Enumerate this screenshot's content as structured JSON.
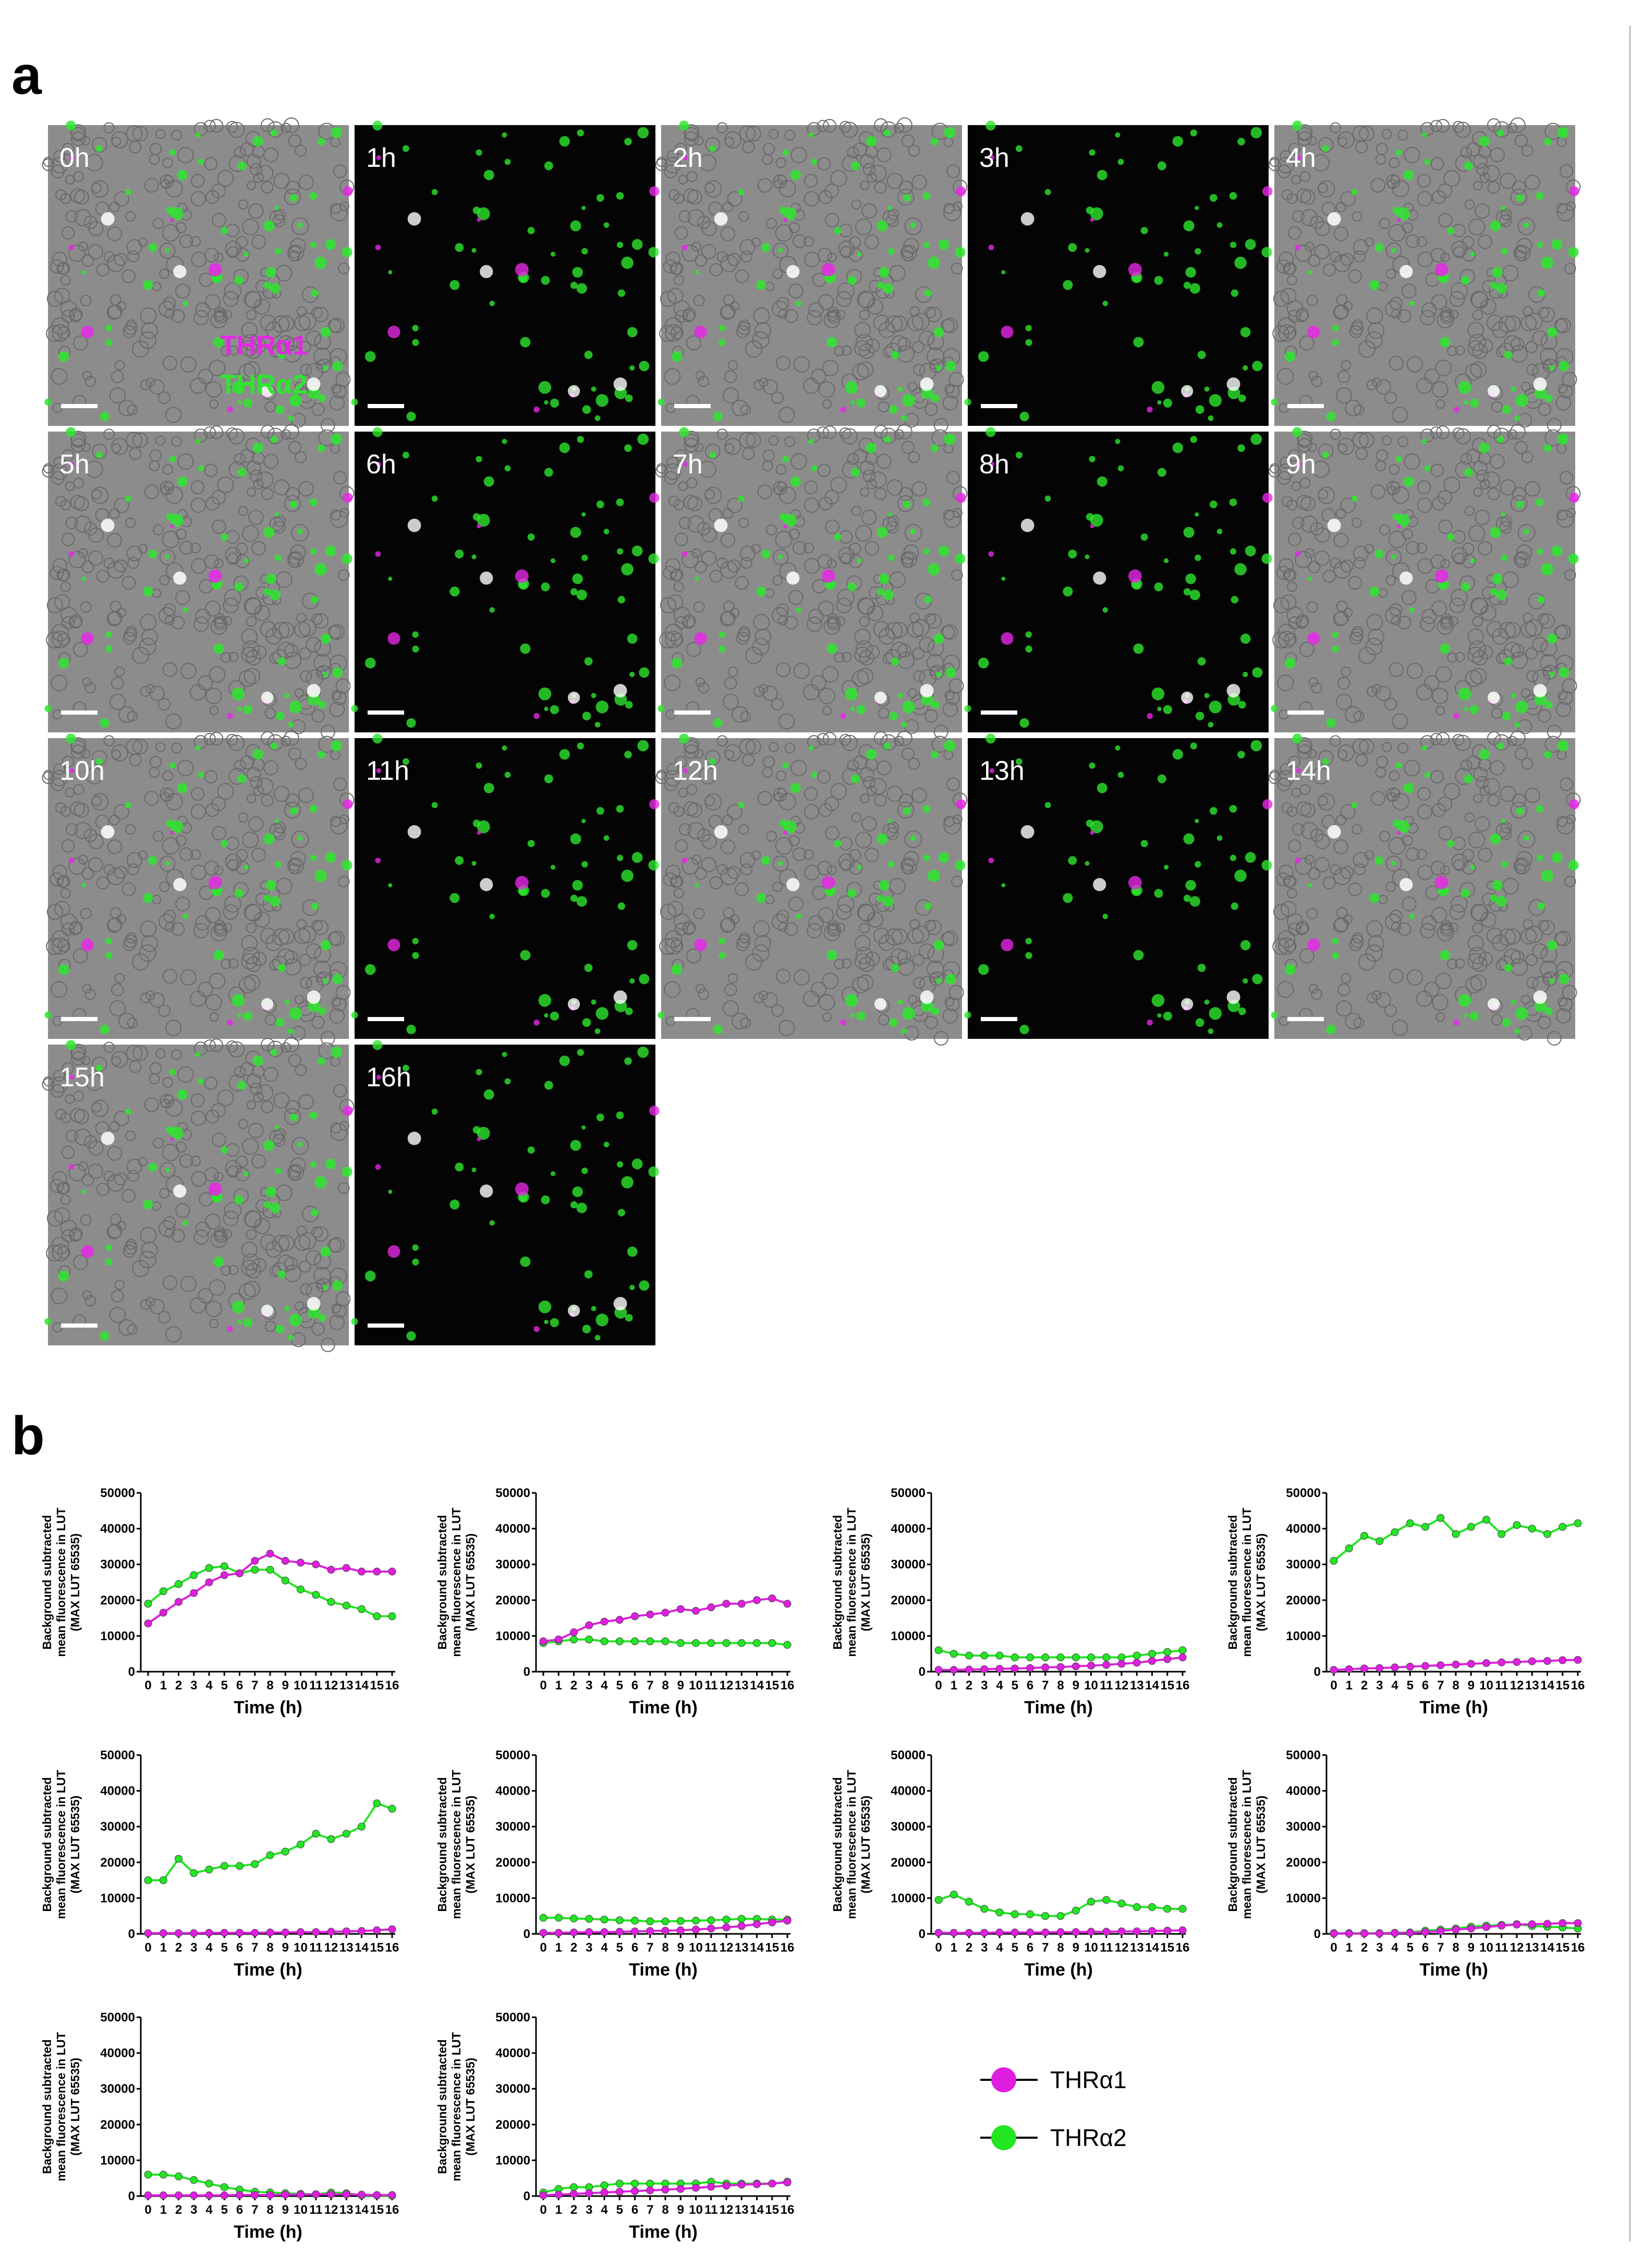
{
  "panel_a": {
    "label": "a",
    "images": [
      {
        "label": "0h"
      },
      {
        "label": "1h"
      },
      {
        "label": "2h"
      },
      {
        "label": "3h"
      },
      {
        "label": "4h"
      },
      {
        "label": "5h"
      },
      {
        "label": "6h"
      },
      {
        "label": "7h"
      },
      {
        "label": "8h"
      },
      {
        "label": "9h"
      },
      {
        "label": "10h"
      },
      {
        "label": "11h"
      },
      {
        "label": "12h"
      },
      {
        "label": "13h"
      },
      {
        "label": "14h"
      },
      {
        "label": "15h"
      },
      {
        "label": "16h"
      }
    ],
    "channels": [
      {
        "name": "THRα1",
        "color": "#e628e6"
      },
      {
        "name": "THRα2",
        "color": "#2ee62e"
      }
    ]
  },
  "panel_b": {
    "label": "b"
  },
  "legend": [
    {
      "name": "THRα1",
      "color": "#e01ee0"
    },
    {
      "name": "THRα2",
      "color": "#22e622"
    }
  ],
  "chart_data": [
    {
      "type": "line",
      "y_label": [
        "Background subtracted",
        "mean fluorescence in LUT",
        "(MAX LUT 65535)"
      ],
      "x_label": "Time (h)",
      "categories": [
        "0",
        "1",
        "2",
        "3",
        "4",
        "5",
        "6",
        "7",
        "8",
        "9",
        "10",
        "11",
        "12",
        "13",
        "14",
        "15",
        "16"
      ],
      "ylim": [
        0,
        50000
      ],
      "yticks": [
        0,
        10000,
        20000,
        30000,
        40000,
        50000
      ],
      "series": [
        {
          "values": [
            13500,
            16500,
            19500,
            22000,
            25000,
            27000,
            27500,
            31000,
            33000,
            31000,
            30500,
            30000,
            28500,
            29000,
            28000,
            28000,
            28000
          ]
        },
        {
          "values": [
            19000,
            22500,
            24500,
            27000,
            29000,
            29500,
            27500,
            28500,
            28500,
            25500,
            23000,
            21500,
            19500,
            18500,
            17500,
            15500,
            15500
          ]
        }
      ]
    },
    {
      "type": "line",
      "y_label": [
        "Background subtracted",
        "mean fluorescence in LUT",
        "(MAX LUT 65535)"
      ],
      "x_label": "Time (h)",
      "categories": [
        "0",
        "1",
        "2",
        "3",
        "4",
        "5",
        "6",
        "7",
        "8",
        "9",
        "10",
        "11",
        "12",
        "13",
        "14",
        "15",
        "16"
      ],
      "ylim": [
        0,
        50000
      ],
      "yticks": [
        0,
        10000,
        20000,
        30000,
        40000,
        50000
      ],
      "series": [
        {
          "values": [
            8500,
            9000,
            11000,
            13000,
            14000,
            14500,
            15500,
            16000,
            16500,
            17500,
            17000,
            18000,
            19000,
            19000,
            20000,
            20500,
            19000
          ]
        },
        {
          "values": [
            8000,
            8500,
            9000,
            9000,
            8500,
            8500,
            8500,
            8500,
            8500,
            8000,
            8000,
            8000,
            8000,
            8000,
            8000,
            8000,
            7500
          ]
        }
      ]
    },
    {
      "type": "line",
      "y_label": [
        "Background subtracted",
        "mean fluorescence in LUT",
        "(MAX LUT 65535)"
      ],
      "x_label": "Time (h)",
      "categories": [
        "0",
        "1",
        "2",
        "3",
        "4",
        "5",
        "6",
        "7",
        "8",
        "9",
        "10",
        "11",
        "12",
        "13",
        "14",
        "15",
        "16"
      ],
      "ylim": [
        0,
        50000
      ],
      "yticks": [
        0,
        10000,
        20000,
        30000,
        40000,
        50000
      ],
      "series": [
        {
          "values": [
            500,
            500,
            600,
            700,
            800,
            900,
            1000,
            1200,
            1300,
            1500,
            1700,
            1900,
            2200,
            2500,
            3000,
            3500,
            4000
          ]
        },
        {
          "values": [
            6000,
            5000,
            4500,
            4500,
            4500,
            4000,
            4000,
            4000,
            4000,
            4000,
            4000,
            4000,
            4000,
            4500,
            5000,
            5500,
            6000
          ]
        }
      ]
    },
    {
      "type": "line",
      "y_label": [
        "Background subtracted",
        "mean fluorescence in LUT",
        "(MAX LUT 65535)"
      ],
      "x_label": "Time (h)",
      "categories": [
        "0",
        "1",
        "2",
        "3",
        "4",
        "5",
        "6",
        "7",
        "8",
        "9",
        "10",
        "11",
        "12",
        "13",
        "14",
        "15",
        "16"
      ],
      "ylim": [
        0,
        50000
      ],
      "yticks": [
        0,
        10000,
        20000,
        30000,
        40000,
        50000
      ],
      "series": [
        {
          "values": [
            500,
            700,
            900,
            1000,
            1200,
            1400,
            1600,
            1800,
            2000,
            2200,
            2400,
            2600,
            2700,
            2900,
            3000,
            3200,
            3300
          ]
        },
        {
          "values": [
            31000,
            34500,
            38000,
            36500,
            39000,
            41500,
            40500,
            43000,
            38500,
            40500,
            42500,
            38500,
            41000,
            40000,
            38500,
            40500,
            41500
          ]
        }
      ]
    },
    {
      "type": "line",
      "y_label": [
        "Background subtracted",
        "mean fluorescence in LUT",
        "(MAX LUT 65535)"
      ],
      "x_label": "Time (h)",
      "categories": [
        "0",
        "1",
        "2",
        "3",
        "4",
        "5",
        "6",
        "7",
        "8",
        "9",
        "10",
        "11",
        "12",
        "13",
        "14",
        "15",
        "16"
      ],
      "ylim": [
        0,
        50000
      ],
      "yticks": [
        0,
        10000,
        20000,
        30000,
        40000,
        50000
      ],
      "series": [
        {
          "values": [
            200,
            200,
            200,
            200,
            300,
            300,
            300,
            300,
            400,
            400,
            500,
            500,
            600,
            700,
            800,
            1000,
            1300
          ]
        },
        {
          "values": [
            15000,
            15000,
            21000,
            17000,
            18000,
            19000,
            19000,
            19500,
            22000,
            23000,
            25000,
            28000,
            26500,
            28000,
            30000,
            36500,
            35000
          ]
        }
      ]
    },
    {
      "type": "line",
      "y_label": [
        "Background subtracted",
        "mean fluorescence in LUT",
        "(MAX LUT 65535)"
      ],
      "x_label": "Time (h)",
      "categories": [
        "0",
        "1",
        "2",
        "3",
        "4",
        "5",
        "6",
        "7",
        "8",
        "9",
        "10",
        "11",
        "12",
        "13",
        "14",
        "15",
        "16"
      ],
      "ylim": [
        0,
        50000
      ],
      "yticks": [
        0,
        10000,
        20000,
        30000,
        40000,
        50000
      ],
      "series": [
        {
          "values": [
            300,
            300,
            400,
            500,
            500,
            600,
            700,
            800,
            900,
            1000,
            1200,
            1500,
            1800,
            2200,
            2700,
            3200,
            3700
          ]
        },
        {
          "values": [
            4500,
            4500,
            4300,
            4200,
            4000,
            3800,
            3700,
            3500,
            3500,
            3600,
            3700,
            3800,
            4000,
            4200,
            4200,
            4000,
            4000
          ]
        }
      ]
    },
    {
      "type": "line",
      "y_label": [
        "Background subtracted",
        "mean fluorescence in LUT",
        "(MAX LUT 65535)"
      ],
      "x_label": "Time (h)",
      "categories": [
        "0",
        "1",
        "2",
        "3",
        "4",
        "5",
        "6",
        "7",
        "8",
        "9",
        "10",
        "11",
        "12",
        "13",
        "14",
        "15",
        "16"
      ],
      "ylim": [
        0,
        50000
      ],
      "yticks": [
        0,
        10000,
        20000,
        30000,
        40000,
        50000
      ],
      "series": [
        {
          "values": [
            300,
            300,
            300,
            300,
            400,
            400,
            400,
            400,
            500,
            500,
            600,
            600,
            700,
            700,
            800,
            900,
            1000
          ]
        },
        {
          "values": [
            9500,
            11000,
            9000,
            7000,
            6000,
            5500,
            5500,
            5000,
            5000,
            6500,
            9000,
            9500,
            8500,
            7500,
            7500,
            7000,
            7000
          ]
        }
      ]
    },
    {
      "type": "line",
      "y_label": [
        "Background subtracted",
        "mean fluorescence in LUT",
        "(MAX LUT 65535)"
      ],
      "x_label": "Time (h)",
      "categories": [
        "0",
        "1",
        "2",
        "3",
        "4",
        "5",
        "6",
        "7",
        "8",
        "9",
        "10",
        "11",
        "12",
        "13",
        "14",
        "15",
        "16"
      ],
      "ylim": [
        0,
        50000
      ],
      "yticks": [
        0,
        10000,
        20000,
        30000,
        40000,
        50000
      ],
      "series": [
        {
          "values": [
            100,
            100,
            100,
            100,
            200,
            300,
            500,
            800,
            1200,
            1500,
            1900,
            2300,
            2600,
            2700,
            2800,
            3000,
            3000
          ]
        },
        {
          "values": [
            200,
            200,
            200,
            200,
            300,
            400,
            900,
            1200,
            1500,
            2000,
            2300,
            2500,
            2700,
            2200,
            2000,
            1800,
            1500
          ]
        }
      ]
    },
    {
      "type": "line",
      "y_label": [
        "Background subtracted",
        "mean fluorescence in LUT",
        "(MAX LUT 65535)"
      ],
      "x_label": "Time (h)",
      "categories": [
        "0",
        "1",
        "2",
        "3",
        "4",
        "5",
        "6",
        "7",
        "8",
        "9",
        "10",
        "11",
        "12",
        "13",
        "14",
        "15",
        "16"
      ],
      "ylim": [
        0,
        50000
      ],
      "yticks": [
        0,
        10000,
        20000,
        30000,
        40000,
        50000
      ],
      "series": [
        {
          "values": [
            200,
            200,
            200,
            200,
            200,
            200,
            300,
            300,
            300,
            400,
            400,
            500,
            500,
            500,
            400,
            300,
            300
          ]
        },
        {
          "values": [
            6000,
            6000,
            5500,
            4500,
            3500,
            2500,
            1800,
            1200,
            1000,
            800,
            600,
            500,
            1000,
            800,
            200,
            200,
            100
          ]
        }
      ]
    },
    {
      "type": "line",
      "y_label": [
        "Background subtracted",
        "mean fluorescence in LUT",
        "(MAX LUT 65535)"
      ],
      "x_label": "Time (h)",
      "categories": [
        "0",
        "1",
        "2",
        "3",
        "4",
        "5",
        "6",
        "7",
        "8",
        "9",
        "10",
        "11",
        "12",
        "13",
        "14",
        "15",
        "16"
      ],
      "ylim": [
        0,
        50000
      ],
      "yticks": [
        0,
        10000,
        20000,
        30000,
        40000,
        50000
      ],
      "series": [
        {
          "values": [
            200,
            400,
            600,
            800,
            1000,
            1200,
            1400,
            1600,
            1800,
            2000,
            2300,
            2600,
            2900,
            3200,
            3300,
            3500,
            3800
          ]
        },
        {
          "values": [
            1000,
            2000,
            2500,
            2500,
            3000,
            3500,
            3500,
            3500,
            3500,
            3500,
            3500,
            4000,
            3500,
            3500,
            3500,
            3500,
            4000
          ]
        }
      ]
    }
  ]
}
